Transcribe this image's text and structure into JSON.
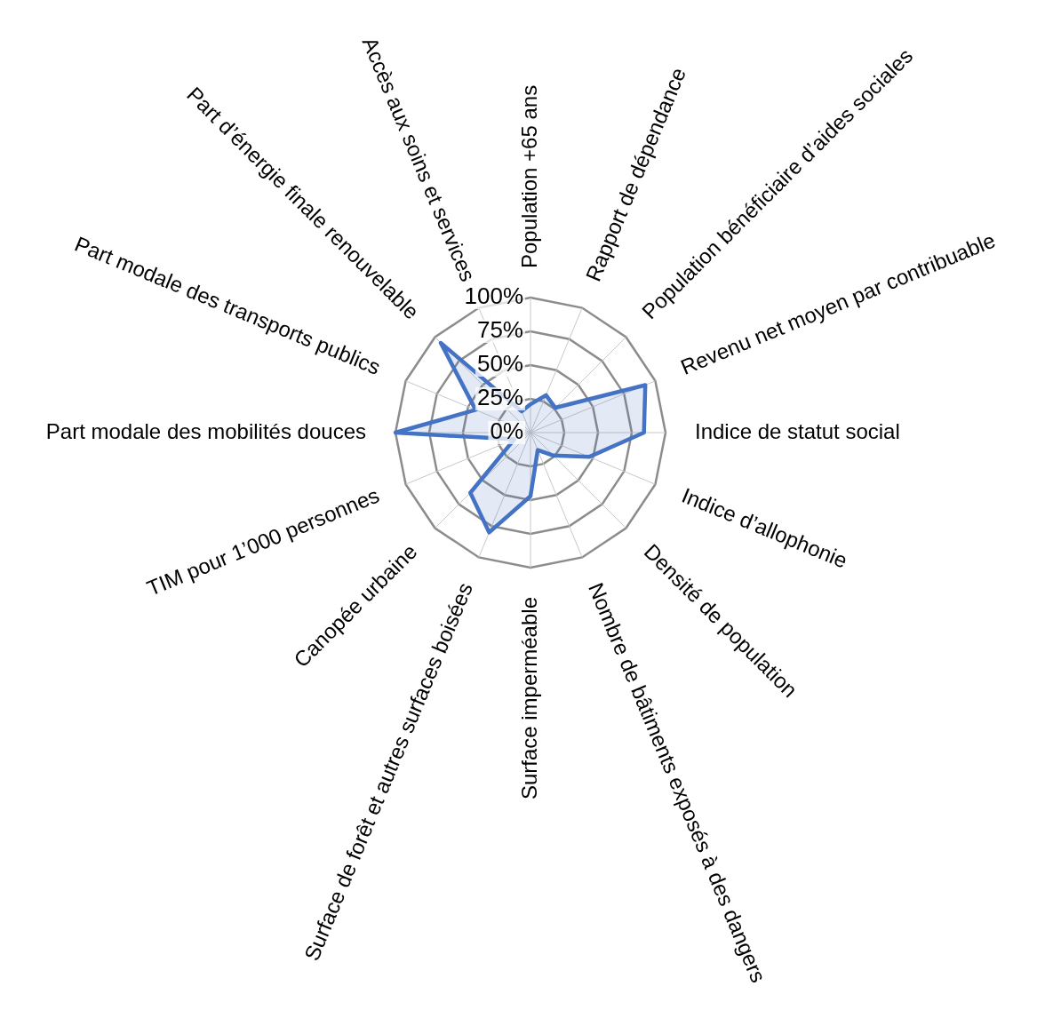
{
  "chart_data": {
    "type": "radar",
    "categories": [
      "Population +65 ans",
      "Rapport de dépendance",
      "Population bénéficiaire d’aides sociales",
      "Revenu net moyen par contribuable",
      "Indice de statut social",
      "Indice d’allophonie",
      "Densité de population",
      "Nombre de bâtiments exposés à des dangers",
      "Surface imperméable",
      "Surface de forêt et autres surfaces boisées",
      "Canopée urbaine",
      "TIM pour 1’000 personnes",
      "Part modale des mobilités douces",
      "Part modale des transports publics",
      "Part d’énergie finale renouvelable",
      "Accès aux soins et services"
    ],
    "series": [
      {
        "color": "#4472c4",
        "values": [
          21,
          30,
          26,
          92,
          84,
          47,
          24,
          14,
          47,
          80,
          63,
          13,
          100,
          44,
          94,
          17
        ]
      }
    ],
    "ylim": [
      0,
      100
    ],
    "yticks": [
      {
        "value": 0,
        "label": "0%"
      },
      {
        "value": 25,
        "label": "25%"
      },
      {
        "value": 50,
        "label": "50%"
      },
      {
        "value": 75,
        "label": "75%"
      },
      {
        "value": 100,
        "label": "100%"
      }
    ],
    "grid": true,
    "marker": "none"
  }
}
